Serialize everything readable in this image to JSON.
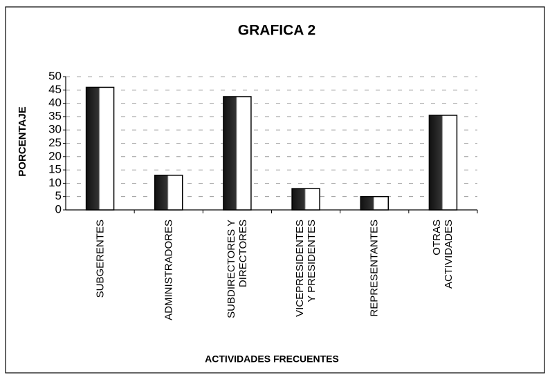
{
  "chart_data": {
    "type": "bar",
    "title": "GRAFICA 2",
    "x_label": "ACTIVIDADES FRECUENTES",
    "y_label": "PORCENTAJE",
    "categories": [
      "SUBGERENTES",
      "ADMINISTRADORES",
      "SUBDIRECTORES Y\nDIRECTORES",
      "VICEPRESIDENTES\nY PRESIDENTES",
      "REPRESENTANTES",
      "OTRAS\nACTIVIDADES"
    ],
    "values": [
      46,
      13,
      42.5,
      8,
      5,
      35.5
    ],
    "color": "#ffffff",
    "ylim": [
      0,
      50
    ],
    "yticks": [
      0,
      5,
      10,
      15,
      20,
      25,
      30,
      35,
      40,
      45,
      50
    ],
    "grid": true
  }
}
